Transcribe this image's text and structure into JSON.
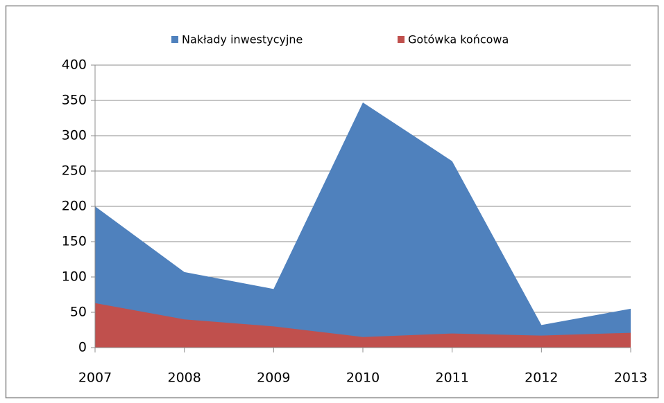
{
  "chart_data": {
    "type": "area",
    "categories": [
      "2007",
      "2008",
      "2009",
      "2010",
      "2011",
      "2012",
      "2013"
    ],
    "series": [
      {
        "name": "Nakłady inwestycyjne",
        "color": "#4f81bd",
        "values": [
          200,
          107,
          83,
          347,
          264,
          32,
          55
        ]
      },
      {
        "name": "Gotówka końcowa",
        "color": "#c0504d",
        "values": [
          63,
          40,
          30,
          15,
          20,
          17,
          21
        ]
      }
    ],
    "ylim": [
      0,
      400
    ],
    "yticks": [
      0,
      50,
      100,
      150,
      200,
      250,
      300,
      350,
      400
    ],
    "grid": true
  }
}
